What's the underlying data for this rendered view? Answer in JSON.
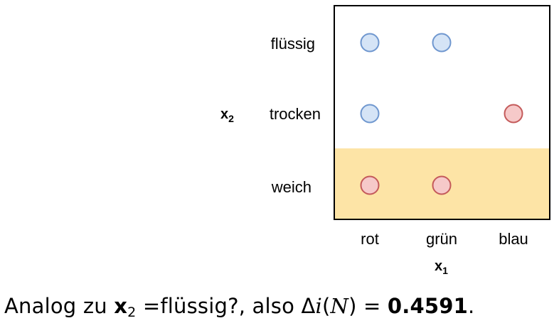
{
  "diagram": {
    "x1": {
      "symbol": "x",
      "subscript": "1",
      "categories": [
        "rot",
        "grün",
        "blau"
      ]
    },
    "x2": {
      "symbol": "x",
      "subscript": "2",
      "categories": [
        "flüssig",
        "trocken",
        "weich"
      ]
    },
    "highlighted_row": "weich",
    "highlight_color": "#fde4a6",
    "frame_color": "#000000",
    "class_colors": {
      "blue": {
        "fill": "#d5e4f6",
        "stroke": "#6f97cf"
      },
      "red": {
        "fill": "#f6c9c9",
        "stroke": "#c45a5a"
      }
    },
    "points": [
      {
        "x1": "rot",
        "x2": "flüssig",
        "class": "blue"
      },
      {
        "x1": "grün",
        "x2": "flüssig",
        "class": "blue"
      },
      {
        "x1": "rot",
        "x2": "trocken",
        "class": "blue"
      },
      {
        "x1": "blau",
        "x2": "trocken",
        "class": "red"
      },
      {
        "x1": "rot",
        "x2": "weich",
        "class": "red"
      },
      {
        "x1": "grün",
        "x2": "weich",
        "class": "red"
      }
    ]
  },
  "caption": {
    "prefix": "Analog zu ",
    "var_symbol": "x",
    "var_subscript": "2",
    "eq": " =flüssig?, also ",
    "delta": "Δ",
    "func_i": "i",
    "paren_open": "(",
    "func_N": "N",
    "paren_close": ")",
    "eq2": " = ",
    "value": "0.4591",
    "suffix": "."
  }
}
